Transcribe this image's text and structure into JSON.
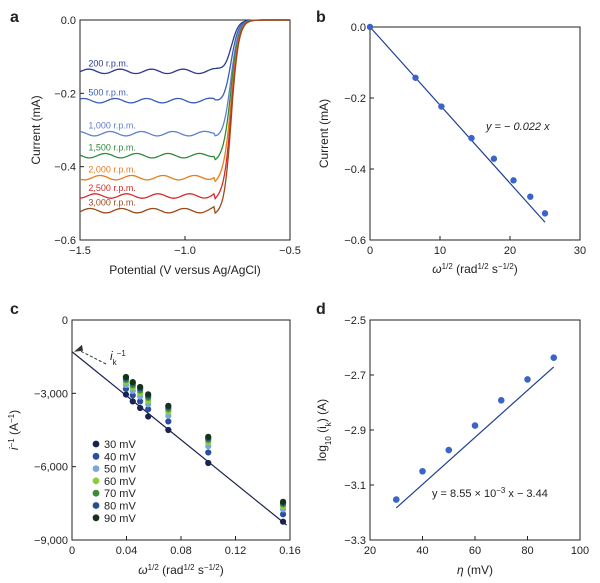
{
  "chart_data": [
    {
      "id": "a",
      "panel_label": "a",
      "type": "line",
      "xlabel": "Potential (V versus Ag/AgCl)",
      "ylabel": "Current (mA)",
      "xlim": [
        -1.5,
        -0.5
      ],
      "ylim": [
        -0.6,
        0.0
      ],
      "xticks": [
        -1.5,
        -1.0,
        -0.5
      ],
      "xtick_labels": [
        "−1.5",
        "−1.0",
        "−0.5"
      ],
      "yticks": [
        0.0,
        -0.2,
        -0.4,
        -0.6
      ],
      "ytick_labels": [
        "0.0",
        "−0.2",
        "−0.4",
        "−0.6"
      ],
      "series": [
        {
          "name": "200 r.p.m.",
          "plateau": -0.14,
          "color": "#2b3a8f"
        },
        {
          "name": "500 r.p.m.",
          "plateau": -0.22,
          "color": "#3a5cb5"
        },
        {
          "name": "1,000 r.p.m.",
          "plateau": -0.31,
          "color": "#5c7fd0"
        },
        {
          "name": "1,500 r.p.m.",
          "plateau": -0.37,
          "color": "#2e8b3a"
        },
        {
          "name": "2,000 r.p.m.",
          "plateau": -0.43,
          "color": "#e67e1e"
        },
        {
          "name": "2,500 r.p.m.",
          "plateau": -0.48,
          "color": "#d42a2a"
        },
        {
          "name": "3,000 r.p.m.",
          "plateau": -0.52,
          "color": "#9a4a1a"
        }
      ]
    },
    {
      "id": "b",
      "panel_label": "b",
      "type": "scatter",
      "xlabel": "ω",
      "xlabel_sup": "1/2",
      "xlabel_unit": " (rad",
      "xlabel_unit_sup": "1/2",
      "xlabel_unit2": " s",
      "xlabel_unit2_sup": "−1/2",
      "xlabel_close": ")",
      "ylabel": "Current (mA)",
      "xlim": [
        0,
        30
      ],
      "ylim": [
        -0.6,
        0.0
      ],
      "xticks": [
        0,
        10,
        20,
        30
      ],
      "xtick_labels": [
        "0",
        "10",
        "20",
        "30"
      ],
      "yticks": [
        0.0,
        -0.2,
        -0.4,
        -0.6
      ],
      "ytick_labels": [
        "0.0",
        "−0.2",
        "−0.4",
        "−0.6"
      ],
      "x": [
        0,
        6.5,
        10.2,
        14.5,
        17.7,
        20.5,
        22.9,
        25.0
      ],
      "y": [
        0.0,
        -0.143,
        -0.224,
        -0.313,
        -0.371,
        -0.432,
        -0.478,
        -0.525
      ],
      "fit_slope": -0.022,
      "fit_label": "y = − 0.022 x",
      "color": "#3a64c8"
    },
    {
      "id": "c",
      "panel_label": "c",
      "type": "scatter",
      "xlabel": "ω",
      "xlabel_sup": "1/2",
      "xlabel_unit": " (rad",
      "xlabel_unit_sup": "1/2",
      "xlabel_unit2": " s",
      "xlabel_unit2_sup": "−1/2",
      "xlabel_close": ")",
      "ylabel": "i",
      "ylabel_sup": "−1",
      "ylabel_unit": " (A",
      "ylabel_unit_sup": "−1",
      "ylabel_close": ")",
      "xlim": [
        0,
        0.16
      ],
      "ylim": [
        -9000,
        0
      ],
      "xticks": [
        0,
        0.04,
        0.08,
        0.12,
        0.16
      ],
      "xtick_labels": [
        "0",
        "0.04",
        "0.08",
        "0.12",
        "0.16"
      ],
      "yticks": [
        0,
        -3000,
        -6000,
        -9000
      ],
      "ytick_labels": [
        "0",
        "−3,000",
        "−6,000",
        "−9,000"
      ],
      "x": [
        0.0396,
        0.0446,
        0.05,
        0.0559,
        0.0707,
        0.1,
        0.1549
      ],
      "series": [
        {
          "name": "30 mV",
          "color": "#1a2250",
          "values": [
            -3050,
            -3330,
            -3600,
            -3950,
            -4500,
            -5850,
            -8250
          ]
        },
        {
          "name": "40 mV",
          "color": "#2a4fa0",
          "values": [
            -2820,
            -3080,
            -3330,
            -3650,
            -4150,
            -5420,
            -7950
          ]
        },
        {
          "name": "50 mV",
          "color": "#7aa7d8",
          "values": [
            -2660,
            -2900,
            -3130,
            -3450,
            -3920,
            -5160,
            -7750
          ]
        },
        {
          "name": "60 mV",
          "color": "#8ccc3a",
          "values": [
            -2540,
            -2770,
            -2990,
            -3300,
            -3750,
            -5000,
            -7620
          ]
        },
        {
          "name": "70 mV",
          "color": "#3f8a3a",
          "values": [
            -2450,
            -2670,
            -2880,
            -3180,
            -3640,
            -4900,
            -7540
          ]
        },
        {
          "name": "80 mV",
          "color": "#284f88",
          "values": [
            -2380,
            -2590,
            -2800,
            -3100,
            -3560,
            -4830,
            -7480
          ]
        },
        {
          "name": "90 mV",
          "color": "#16321a",
          "values": [
            -2330,
            -2540,
            -2740,
            -3040,
            -3510,
            -4780,
            -7440
          ]
        }
      ],
      "fit_intercept": -1300,
      "fit_slope": -45000,
      "annotation": "i",
      "annotation_sub": "k",
      "annotation_sup": "−1"
    },
    {
      "id": "d",
      "panel_label": "d",
      "type": "scatter",
      "xlabel": "η",
      "xlabel_unit": "  (mV)",
      "ylabel": "log",
      "ylabel_sub": "10",
      "ylabel_mid": " (i",
      "ylabel_mid_sub": "k",
      "ylabel_close": ") (A)",
      "xlim": [
        20,
        100
      ],
      "ylim": [
        -3.3,
        -2.5
      ],
      "xticks": [
        20,
        40,
        60,
        80,
        100
      ],
      "xtick_labels": [
        "20",
        "40",
        "60",
        "80",
        "100"
      ],
      "yticks": [
        -2.5,
        -2.7,
        -2.9,
        -3.1,
        -3.3
      ],
      "ytick_labels": [
        "−2.5",
        "−2.7",
        "−2.9",
        "−3.1",
        "−3.3"
      ],
      "x": [
        30,
        40,
        50,
        60,
        70,
        80,
        90
      ],
      "y": [
        -3.153,
        -3.05,
        -2.973,
        -2.884,
        -2.792,
        -2.716,
        -2.637
      ],
      "fit_slope": 0.00855,
      "fit_intercept": -3.44,
      "fit_label": "y = 8.55 × 10",
      "fit_label_sup": "−3",
      "fit_label_tail": " x − 3.44",
      "color": "#3a64c8"
    }
  ]
}
